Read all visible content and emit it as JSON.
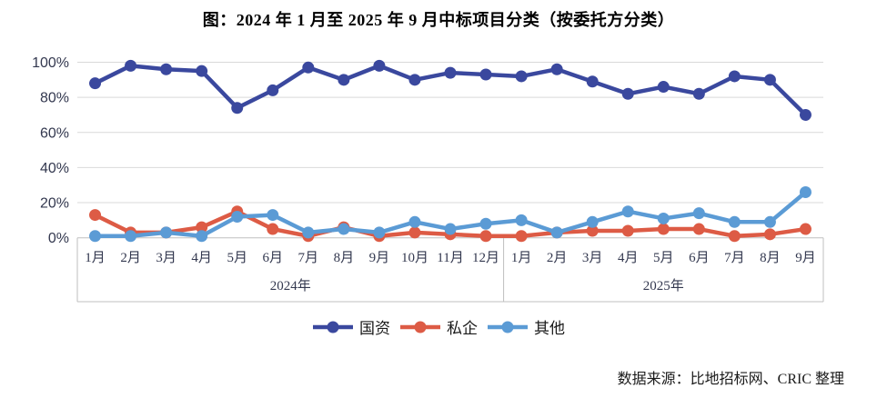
{
  "title": "图：2024 年 1 月至 2025 年 9 月中标项目分类（按委托方分类）",
  "footer": {
    "source_text": "数据来源：比地招标网、CRIC 整理"
  },
  "colors": {
    "guozi": "#3a489e",
    "siqi": "#dd5b45",
    "qita": "#5b9bd5",
    "gridline": "#d9d9d9",
    "axis_line": "#bfbfbf",
    "label_text": "#33384f"
  },
  "chart_data": {
    "type": "line",
    "title": "图：2024 年 1 月至 2025 年 9 月中标项目分类（按委托方分类）",
    "x_groups": [
      {
        "year": "2024年",
        "months": [
          "1月",
          "2月",
          "3月",
          "4月",
          "5月",
          "6月",
          "7月",
          "8月",
          "9月",
          "10月",
          "11月",
          "12月"
        ]
      },
      {
        "year": "2025年",
        "months": [
          "1月",
          "2月",
          "3月",
          "4月",
          "5月",
          "6月",
          "7月",
          "8月",
          "9月"
        ]
      }
    ],
    "series": [
      {
        "name": "国资",
        "color": "#3a489e",
        "values": [
          88,
          98,
          96,
          95,
          74,
          84,
          97,
          90,
          98,
          90,
          94,
          93,
          92,
          96,
          89,
          82,
          86,
          82,
          92,
          90,
          70
        ]
      },
      {
        "name": "私企",
        "color": "#dd5b45",
        "values": [
          13,
          3,
          3,
          6,
          15,
          5,
          1,
          6,
          1,
          3,
          2,
          1,
          1,
          3,
          4,
          4,
          5,
          5,
          1,
          2,
          5
        ]
      },
      {
        "name": "其他",
        "color": "#5b9bd5",
        "values": [
          1,
          1,
          3,
          1,
          12,
          13,
          3,
          5,
          3,
          9,
          5,
          8,
          10,
          3,
          9,
          15,
          11,
          14,
          9,
          9,
          26
        ]
      }
    ],
    "ylabel": "",
    "xlabel": "",
    "ylim": [
      0,
      100
    ],
    "yticks": [
      "0%",
      "20%",
      "40%",
      "60%",
      "80%",
      "100%"
    ],
    "grid": true,
    "legend_position": "bottom",
    "unit": "percent"
  }
}
